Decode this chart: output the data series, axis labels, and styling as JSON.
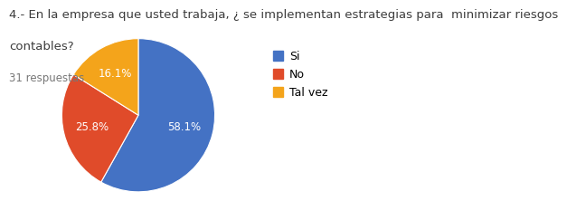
{
  "title_line1": "4.- En la empresa que usted trabaja, ¿ se implementan estrategias para  minimizar riesgos",
  "title_line2": "contables?",
  "subtitle": "31 respuestas",
  "labels": [
    "Si",
    "No",
    "Tal vez"
  ],
  "values": [
    58.1,
    25.8,
    16.1
  ],
  "colors": [
    "#4472C4",
    "#E04B2A",
    "#F4A41B"
  ],
  "text_color_inside": "#FFFFFF",
  "background_color": "#FFFFFF",
  "legend_labels": [
    "Si",
    "No",
    "Tal vez"
  ],
  "startangle": 90,
  "title_fontsize": 9.5,
  "subtitle_fontsize": 8.5,
  "label_fontsize": 8.5
}
